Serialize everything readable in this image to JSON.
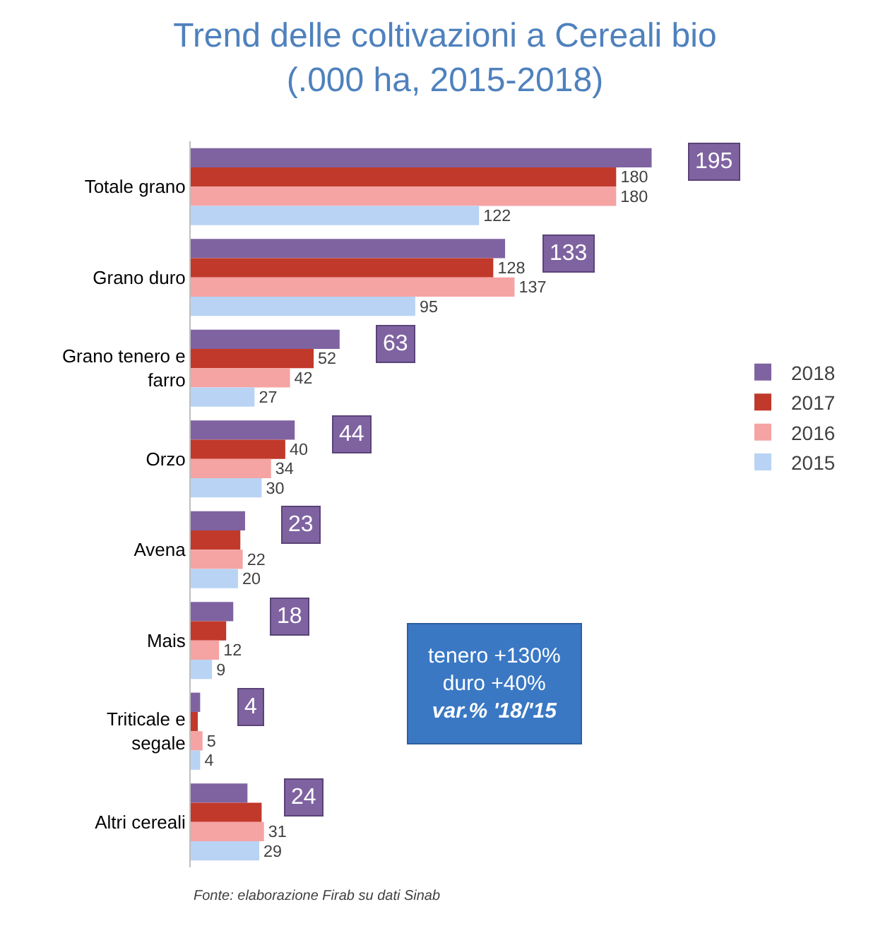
{
  "chart_data": {
    "type": "bar",
    "orientation": "horizontal",
    "title": "Trend delle coltivazioni a Cereali bio",
    "subtitle": "(.000 ha, 2015-2018)",
    "categories": [
      "Totale grano",
      "Grano duro",
      "Grano tenero e farro",
      "Orzo",
      "Avena",
      "Mais",
      "Triticale e segale",
      "Altri cereali"
    ],
    "series": [
      {
        "name": "2018",
        "color": "#7f63a1",
        "values": [
          195,
          133,
          63,
          44,
          23,
          18,
          4,
          24
        ]
      },
      {
        "name": "2017",
        "color": "#c0392b",
        "values": [
          180,
          128,
          52,
          40,
          21,
          15,
          3,
          30
        ],
        "value_labels": [
          "180",
          "128",
          "52",
          "40",
          null,
          null,
          null,
          null
        ]
      },
      {
        "name": "2016",
        "color": "#f5a3a3",
        "values": [
          180,
          137,
          42,
          34,
          22,
          12,
          5,
          31
        ]
      },
      {
        "name": "2015",
        "color": "#b8d3f4",
        "values": [
          122,
          95,
          27,
          30,
          20,
          9,
          4,
          29
        ]
      }
    ],
    "data_labels": true,
    "legend": "right",
    "annotations": [
      "tenero +130%",
      "duro +40%",
      "var.% '18/'15",
      "Fonte: elaborazione Firab su dati Sinab"
    ]
  }
}
